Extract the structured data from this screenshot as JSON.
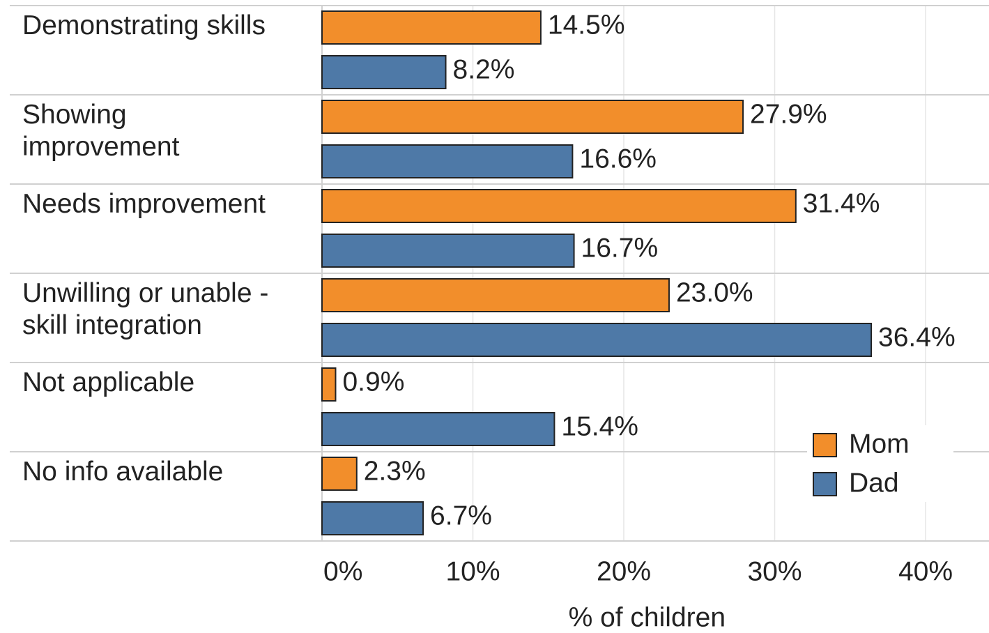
{
  "chart_data": {
    "type": "bar",
    "orientation": "horizontal",
    "x_label": "% of children",
    "categories": [
      "Demonstrating skills",
      "Showing\nimprovement",
      "Needs improvement",
      "Unwilling or unable -\nskill integration",
      "Not applicable",
      "No info available"
    ],
    "series": [
      {
        "name": "Mom",
        "color": "#f28e2b",
        "values": [
          14.5,
          27.9,
          31.4,
          23.0,
          0.9,
          2.3
        ],
        "value_labels": [
          "14.5%",
          "27.9%",
          "31.4%",
          "23.0%",
          "0.9%",
          "2.3%"
        ]
      },
      {
        "name": "Dad",
        "color": "#4e79a7",
        "values": [
          8.2,
          16.6,
          16.7,
          36.4,
          15.4,
          6.7
        ],
        "value_labels": [
          "8.2%",
          "16.6%",
          "16.7%",
          "36.4%",
          "15.4%",
          "6.7%"
        ]
      }
    ],
    "xlim": [
      0,
      44
    ],
    "xticks": [
      {
        "value": 0,
        "label": "0%"
      },
      {
        "value": 10,
        "label": "10%"
      },
      {
        "value": 20,
        "label": "20%"
      },
      {
        "value": 30,
        "label": "30%"
      },
      {
        "value": 40,
        "label": "40%"
      }
    ],
    "grid": true,
    "legend": "lower right"
  }
}
